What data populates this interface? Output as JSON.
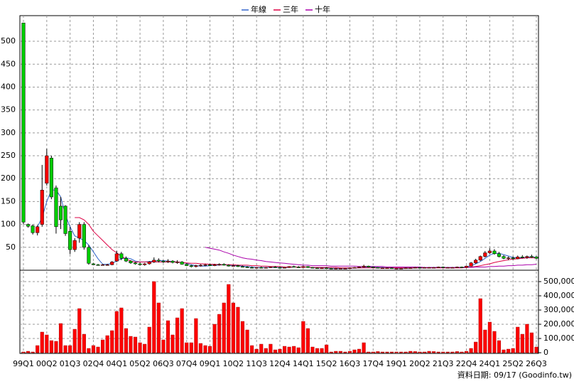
{
  "chart_data": {
    "type": "candlestick",
    "categories": [
      "99Q1",
      null,
      null,
      null,
      null,
      "00Q2",
      null,
      null,
      null,
      null,
      "01Q3",
      null,
      null,
      null,
      null,
      "02Q4",
      null,
      null,
      null,
      null,
      "04Q1",
      null,
      null,
      null,
      null,
      "05Q2",
      null,
      null,
      null,
      null,
      "06Q3",
      null,
      null,
      null,
      null,
      "07Q4",
      null,
      null,
      null,
      null,
      "09Q1",
      null,
      null,
      null,
      null,
      "10Q2",
      null,
      null,
      null,
      null,
      "11Q3",
      null,
      null,
      null,
      null,
      "12Q4",
      null,
      null,
      null,
      null,
      "14Q1",
      null,
      null,
      null,
      null,
      "15Q2",
      null,
      null,
      null,
      null,
      "16Q3",
      null,
      null,
      null,
      null,
      "17Q4",
      null,
      null,
      null,
      null,
      "19Q1",
      null,
      null,
      null,
      null,
      "20Q2",
      null,
      null,
      null,
      null,
      "21Q3",
      null,
      null,
      null,
      null,
      "22Q4",
      null,
      null,
      null,
      null,
      "24Q1",
      null,
      null,
      null,
      null,
      "25Q2",
      null,
      null,
      null,
      null,
      "26Q3"
    ],
    "candles": [
      [
        540,
        540,
        100,
        105
      ],
      [
        100,
        102,
        93,
        96
      ],
      [
        97,
        100,
        78,
        82
      ],
      [
        82,
        98,
        76,
        95
      ],
      [
        100,
        230,
        95,
        175
      ],
      [
        190,
        265,
        185,
        250
      ],
      [
        245,
        250,
        155,
        160
      ],
      [
        180,
        185,
        80,
        95
      ],
      [
        140,
        160,
        90,
        110
      ],
      [
        140,
        142,
        75,
        80
      ],
      [
        85,
        95,
        35,
        45
      ],
      [
        45,
        70,
        40,
        65
      ],
      [
        70,
        105,
        60,
        100
      ],
      [
        100,
        105,
        45,
        50
      ],
      [
        50,
        55,
        12,
        15
      ],
      [
        14,
        16,
        11,
        12
      ],
      [
        12,
        14,
        10,
        11
      ],
      [
        11,
        14,
        10,
        12
      ],
      [
        12,
        14,
        10,
        12
      ],
      [
        12,
        20,
        11,
        18
      ],
      [
        20,
        42,
        18,
        36
      ],
      [
        36,
        40,
        22,
        26
      ],
      [
        26,
        30,
        18,
        20
      ],
      [
        20,
        22,
        14,
        16
      ],
      [
        16,
        18,
        12,
        14
      ],
      [
        14,
        17,
        10,
        12
      ],
      [
        12,
        16,
        10,
        14
      ],
      [
        14,
        20,
        12,
        18
      ],
      [
        18,
        28,
        16,
        22
      ],
      [
        22,
        26,
        17,
        20
      ],
      [
        20,
        22,
        16,
        18
      ],
      [
        18,
        24,
        16,
        20
      ],
      [
        20,
        22,
        15,
        17
      ],
      [
        17,
        22,
        14,
        18
      ],
      [
        18,
        20,
        12,
        13
      ],
      [
        13,
        15,
        9,
        10
      ],
      [
        10,
        12,
        6,
        8
      ],
      [
        8,
        12,
        6,
        10
      ],
      [
        10,
        13,
        8,
        11
      ],
      [
        11,
        14,
        9,
        12
      ],
      [
        12,
        14,
        9,
        10
      ],
      [
        10,
        14,
        9,
        12
      ],
      [
        12,
        15,
        10,
        13
      ],
      [
        13,
        15,
        10,
        11
      ],
      [
        11,
        13,
        8,
        9
      ],
      [
        9,
        12,
        8,
        10
      ],
      [
        10,
        12,
        7,
        8
      ],
      [
        8,
        10,
        6,
        7
      ],
      [
        7,
        9,
        5,
        6
      ],
      [
        6,
        8,
        4,
        5
      ],
      [
        5,
        7,
        4,
        6
      ],
      [
        6,
        8,
        4,
        5
      ],
      [
        5,
        7,
        4,
        6
      ],
      [
        6,
        8,
        5,
        7
      ],
      [
        7,
        9,
        5,
        6
      ],
      [
        6,
        8,
        4,
        5
      ],
      [
        5,
        7,
        4,
        6
      ],
      [
        6,
        9,
        5,
        8
      ],
      [
        8,
        10,
        6,
        7
      ],
      [
        7,
        9,
        5,
        6
      ],
      [
        6,
        10,
        5,
        8
      ],
      [
        8,
        9,
        5,
        6
      ],
      [
        6,
        7,
        4,
        5
      ],
      [
        5,
        6,
        3,
        4
      ],
      [
        4,
        6,
        3,
        5
      ],
      [
        5,
        7,
        3,
        4
      ],
      [
        4,
        5,
        2,
        3
      ],
      [
        3,
        5,
        2,
        4
      ],
      [
        4,
        5,
        3,
        4
      ],
      [
        4,
        5,
        3,
        4
      ],
      [
        4,
        6,
        3,
        5
      ],
      [
        5,
        7,
        4,
        6
      ],
      [
        6,
        8,
        5,
        7
      ],
      [
        7,
        12,
        6,
        9
      ],
      [
        9,
        10,
        6,
        7
      ],
      [
        7,
        8,
        5,
        6
      ],
      [
        6,
        7,
        4,
        5
      ],
      [
        5,
        6,
        4,
        5
      ],
      [
        5,
        6,
        4,
        5
      ],
      [
        5,
        6,
        3,
        4
      ],
      [
        4,
        5,
        3,
        4
      ],
      [
        4,
        5,
        3,
        4
      ],
      [
        4,
        6,
        3,
        5
      ],
      [
        5,
        6,
        4,
        5
      ],
      [
        5,
        7,
        4,
        6
      ],
      [
        6,
        7,
        4,
        5
      ],
      [
        5,
        7,
        4,
        6
      ],
      [
        6,
        7,
        5,
        6
      ],
      [
        6,
        7,
        5,
        6
      ],
      [
        6,
        8,
        5,
        7
      ],
      [
        7,
        8,
        5,
        6
      ],
      [
        6,
        7,
        5,
        6
      ],
      [
        6,
        7,
        5,
        6
      ],
      [
        6,
        8,
        5,
        7
      ],
      [
        7,
        8,
        5,
        6
      ],
      [
        6,
        10,
        5,
        9
      ],
      [
        9,
        18,
        8,
        16
      ],
      [
        16,
        25,
        14,
        22
      ],
      [
        22,
        32,
        20,
        30
      ],
      [
        30,
        42,
        28,
        38
      ],
      [
        38,
        48,
        35,
        42
      ],
      [
        42,
        46,
        34,
        36
      ],
      [
        36,
        40,
        28,
        30
      ],
      [
        30,
        33,
        24,
        26
      ],
      [
        26,
        30,
        22,
        27
      ],
      [
        27,
        30,
        23,
        25
      ],
      [
        25,
        32,
        24,
        29
      ],
      [
        29,
        33,
        26,
        28
      ],
      [
        28,
        32,
        25,
        30
      ],
      [
        30,
        34,
        27,
        29
      ],
      [
        29,
        31,
        24,
        26
      ]
    ],
    "up_color": "#ff0000",
    "down_color": "#00cc00",
    "series": [
      {
        "name": "年線",
        "color": "#3366cc",
        "values": [
          null,
          null,
          null,
          95,
          115,
          150,
          175,
          175,
          160,
          120,
          95,
          75,
          70,
          65,
          55,
          40,
          25,
          13,
          13,
          15,
          20,
          25,
          27,
          25,
          20,
          18,
          18,
          19,
          20,
          21,
          21,
          20,
          19,
          18,
          17,
          15,
          12,
          10,
          9,
          9,
          10,
          11,
          11,
          12,
          11,
          10,
          10,
          9,
          8,
          7,
          6,
          6,
          6,
          6,
          6,
          6,
          6,
          6,
          7,
          7,
          7,
          7,
          6,
          5,
          5,
          5,
          4,
          4,
          4,
          4,
          4,
          5,
          5,
          6,
          7,
          7,
          6,
          6,
          5,
          5,
          4,
          4,
          4,
          4,
          5,
          5,
          5,
          6,
          6,
          6,
          6,
          6,
          6,
          6,
          6,
          7,
          10,
          14,
          19,
          26,
          33,
          37,
          37,
          34,
          31,
          28,
          27,
          27,
          28,
          29,
          28
        ]
      },
      {
        "name": "三年",
        "color": "#dd0044",
        "values": [
          null,
          null,
          null,
          null,
          null,
          null,
          null,
          null,
          null,
          null,
          null,
          115,
          115,
          110,
          100,
          85,
          75,
          65,
          55,
          45,
          38,
          30,
          25,
          20,
          18,
          18,
          18,
          18,
          18,
          18,
          18,
          18,
          18,
          18,
          17,
          16,
          15,
          15,
          14,
          14,
          13,
          13,
          12,
          12,
          12,
          12,
          11,
          11,
          11,
          10,
          10,
          9,
          9,
          8,
          8,
          8,
          7,
          7,
          7,
          7,
          7,
          7,
          6,
          6,
          6,
          6,
          6,
          6,
          5,
          5,
          5,
          5,
          5,
          5,
          5,
          5,
          5,
          5,
          5,
          5,
          5,
          5,
          5,
          5,
          5,
          5,
          5,
          5,
          5,
          5,
          5,
          5,
          5,
          5,
          5,
          6,
          7,
          8,
          10,
          12,
          14,
          17,
          19,
          21,
          23,
          24,
          25,
          26,
          27,
          27,
          27
        ]
      },
      {
        "name": "十年",
        "color": "#aa00aa",
        "values": [
          null,
          null,
          null,
          null,
          null,
          null,
          null,
          null,
          null,
          null,
          null,
          null,
          null,
          null,
          null,
          null,
          null,
          null,
          null,
          null,
          null,
          null,
          null,
          null,
          null,
          null,
          null,
          null,
          null,
          null,
          null,
          null,
          null,
          null,
          null,
          null,
          null,
          null,
          null,
          50,
          48,
          46,
          44,
          40,
          37,
          33,
          30,
          27,
          25,
          24,
          22,
          21,
          19,
          18,
          17,
          16,
          15,
          14,
          13,
          12,
          11,
          11,
          10,
          10,
          10,
          10,
          9,
          9,
          9,
          9,
          9,
          9,
          8,
          8,
          8,
          8,
          8,
          8,
          7,
          7,
          7,
          7,
          7,
          7,
          7,
          7,
          6,
          6,
          6,
          6,
          6,
          6,
          6,
          6,
          6,
          6,
          6,
          7,
          7,
          7,
          8,
          8,
          9,
          9,
          10,
          10,
          11,
          11,
          12,
          12,
          13
        ]
      }
    ],
    "ylim": [
      0,
      556
    ],
    "yticks": [
      50,
      100,
      150,
      200,
      250,
      300,
      350,
      400,
      450,
      500
    ],
    "volume": {
      "color": "#ff0000",
      "values": [
        5000,
        10000,
        5000,
        50000,
        145000,
        125000,
        85000,
        80000,
        205000,
        50000,
        50000,
        165000,
        310000,
        130000,
        30000,
        50000,
        40000,
        90000,
        120000,
        155000,
        290000,
        315000,
        170000,
        115000,
        110000,
        70000,
        60000,
        180000,
        500000,
        350000,
        90000,
        225000,
        125000,
        245000,
        310000,
        70000,
        70000,
        240000,
        65000,
        50000,
        45000,
        200000,
        270000,
        350000,
        480000,
        350000,
        320000,
        220000,
        160000,
        50000,
        25000,
        60000,
        30000,
        60000,
        20000,
        25000,
        45000,
        40000,
        45000,
        35000,
        220000,
        170000,
        40000,
        30000,
        30000,
        55000,
        5000,
        10000,
        10000,
        5000,
        10000,
        20000,
        25000,
        70000,
        5000,
        5000,
        8000,
        5000,
        5000,
        5000,
        5000,
        5000,
        5000,
        10000,
        8000,
        5000,
        5000,
        10000,
        8000,
        5000,
        5000,
        5000,
        5000,
        8000,
        5000,
        10000,
        30000,
        75000,
        380000,
        160000,
        215000,
        150000,
        85000,
        20000,
        25000,
        30000,
        180000,
        130000,
        200000,
        140000,
        40000
      ],
      "ylim": [
        0,
        580000
      ],
      "yticks": [
        0,
        {
          "value": 100000,
          "label": "100,000"
        },
        {
          "value": 200000,
          "label": "200,000"
        },
        {
          "value": 300000,
          "label": "300,000"
        },
        {
          "value": 400000,
          "label": "400,000"
        },
        {
          "value": 500000,
          "label": "500,000"
        }
      ]
    },
    "grid": true,
    "note": "資料日期: 09/17  (Goodinfo.tw)"
  }
}
